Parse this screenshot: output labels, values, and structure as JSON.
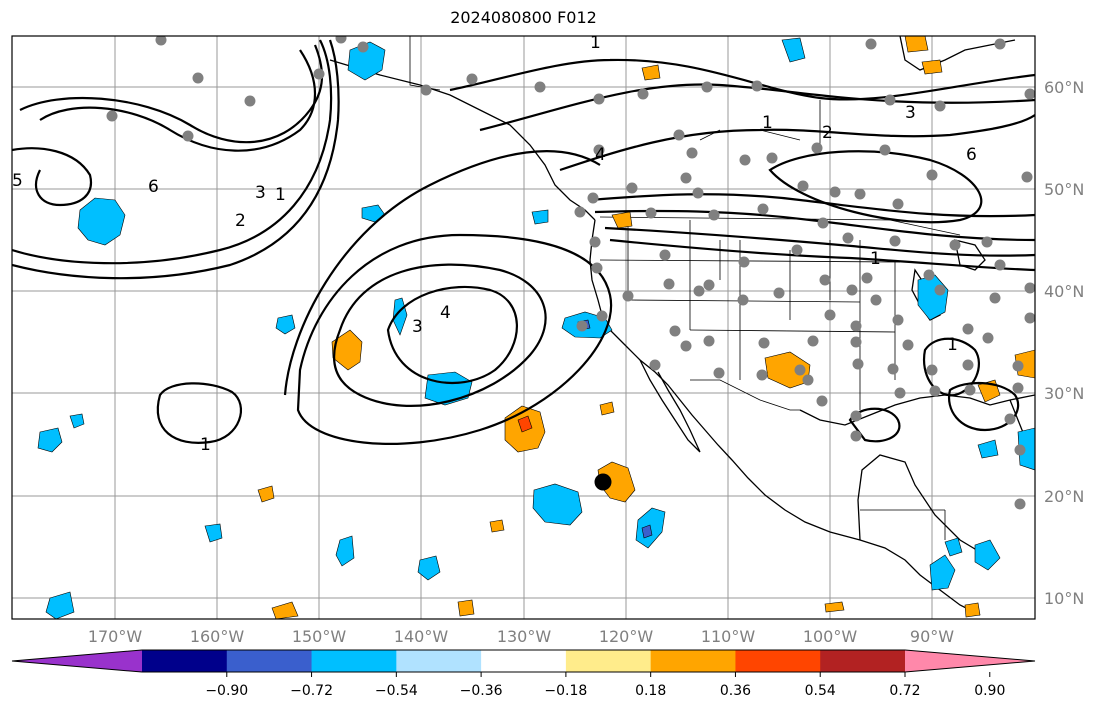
{
  "title": "2024080800 F012",
  "map": {
    "latitude_labels": [
      "60°N",
      "50°N",
      "40°N",
      "30°N",
      "20°N",
      "10°N"
    ],
    "longitude_labels": [
      "170°W",
      "160°W",
      "150°W",
      "140°W",
      "130°W",
      "120°W",
      "110°W",
      "100°W",
      "90°W"
    ],
    "contour_labels": [
      "1",
      "2",
      "3",
      "4",
      "5",
      "6"
    ],
    "storm_marker": "black-dot",
    "gridline_color": "#999999",
    "land_outline_color": "#000000"
  },
  "colorbar": {
    "tick_labels": [
      "−0.90",
      "−0.72",
      "−0.54",
      "−0.36",
      "−0.18",
      "0.18",
      "0.36",
      "0.54",
      "0.72",
      "0.90"
    ],
    "colors": [
      "#9932cc",
      "#00008b",
      "#3a5fcd",
      "#00bfff",
      "#b0e2ff",
      "#ffffff",
      "#ffec8b",
      "#ffa500",
      "#ff4500",
      "#b22222",
      "#ff88aa"
    ]
  }
}
